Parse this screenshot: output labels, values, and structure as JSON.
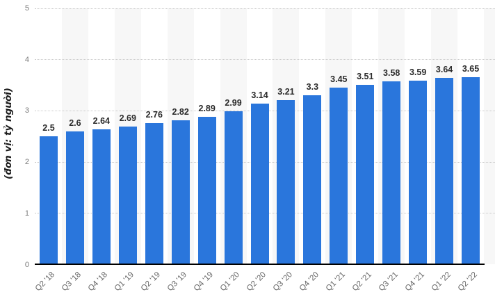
{
  "chart_data": {
    "type": "bar",
    "title": "",
    "ylabel": "(đơn vị: tỷ người)",
    "xlabel": "",
    "categories": [
      "Q2 '18",
      "Q3 '18",
      "Q4 '18",
      "Q1 '19",
      "Q2 '19",
      "Q3 '19",
      "Q4 '19",
      "Q1 '20",
      "Q2 '20",
      "Q3 '20",
      "Q4 '20",
      "Q1 '21",
      "Q2 '21",
      "Q3 '21",
      "Q4 '21",
      "Q1 '22",
      "Q2 '22"
    ],
    "values": [
      2.5,
      2.6,
      2.64,
      2.69,
      2.76,
      2.82,
      2.89,
      2.99,
      3.14,
      3.21,
      3.3,
      3.45,
      3.51,
      3.58,
      3.59,
      3.64,
      3.65
    ],
    "value_labels": [
      "2.5",
      "2.6",
      "2.64",
      "2.69",
      "2.76",
      "2.82",
      "2.89",
      "2.99",
      "3.14",
      "3.21",
      "3.3",
      "3.45",
      "3.51",
      "3.58",
      "3.59",
      "3.64",
      "3.65"
    ],
    "ylim": [
      0,
      5
    ],
    "yticks": [
      0,
      1,
      2,
      3,
      4,
      5
    ],
    "grid": "horizontal-dotted",
    "legend_position": "none",
    "colors": {
      "bar": "#2a76dc",
      "column_stripe": "#f7f7f7",
      "gridline": "#c9c9c9",
      "axis_line": "#000000",
      "y_tick_label": "#7a7a7a",
      "x_tick_label": "#666666",
      "value_label": "#2b2b2b",
      "y_axis_title": "#1a1a1a",
      "background": "#ffffff"
    }
  }
}
